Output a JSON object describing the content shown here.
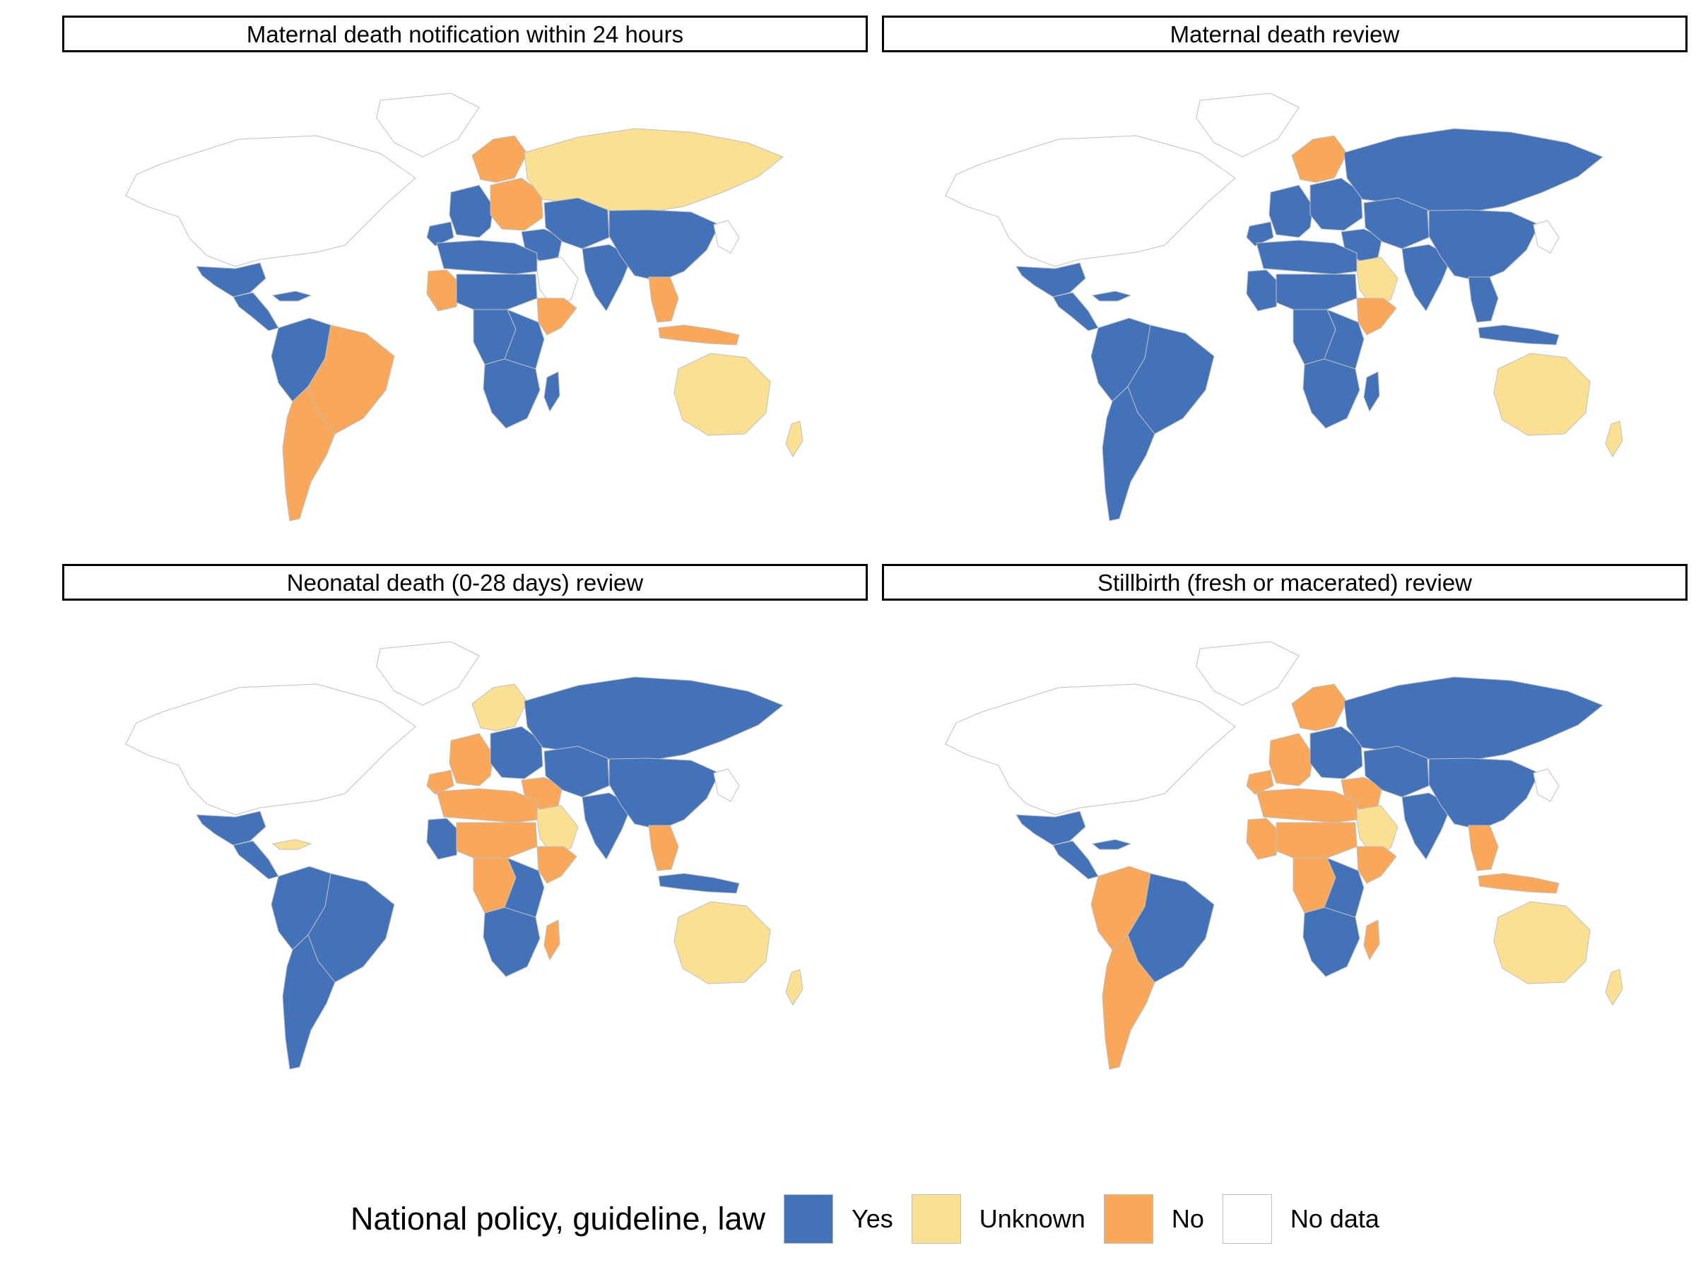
{
  "legend": {
    "title": "National policy, guideline, law",
    "items": [
      {
        "label": "Yes",
        "color": "#4372B8"
      },
      {
        "label": "Unknown",
        "color": "#FBDF92"
      },
      {
        "label": "No",
        "color": "#F9A75A"
      },
      {
        "label": "No data",
        "color": "#FFFFFF"
      }
    ]
  },
  "panels": [
    {
      "title": "Maternal death notification within 24 hours",
      "regions": {
        "north_america": "No data",
        "greenland": "No data",
        "mexico": "Yes",
        "central_america": "Yes",
        "caribbean": "Yes",
        "northwest_south_america": "Yes",
        "brazil": "No",
        "southern_cone": "No",
        "iberia": "Yes",
        "western_europe": "Yes",
        "scandinavia": "No",
        "eastern_europe": "No",
        "russia": "Unknown",
        "middle_east": "Yes",
        "arabia": "No data",
        "central_asia": "Yes",
        "south_asia": "Yes",
        "china": "Yes",
        "japan_korea": "No data",
        "southeast_asia": "No",
        "indonesia": "No",
        "australia": "Unknown",
        "new_zealand": "Unknown",
        "north_africa": "Yes",
        "west_africa_inland": "No",
        "sahel": "Yes",
        "horn_of_africa": "No",
        "central_africa": "Yes",
        "east_africa": "Yes",
        "southern_africa": "Yes",
        "madagascar": "Yes"
      }
    },
    {
      "title": "Maternal death review",
      "regions": {
        "north_america": "No data",
        "greenland": "No data",
        "mexico": "Yes",
        "central_america": "Yes",
        "caribbean": "Yes",
        "northwest_south_america": "Yes",
        "brazil": "Yes",
        "southern_cone": "Yes",
        "iberia": "Yes",
        "western_europe": "Yes",
        "scandinavia": "No",
        "eastern_europe": "Yes",
        "russia": "Yes",
        "middle_east": "Yes",
        "arabia": "Unknown",
        "central_asia": "Yes",
        "south_asia": "Yes",
        "china": "Yes",
        "japan_korea": "No data",
        "southeast_asia": "Yes",
        "indonesia": "Yes",
        "australia": "Unknown",
        "new_zealand": "Unknown",
        "north_africa": "Yes",
        "west_africa_inland": "Yes",
        "sahel": "Yes",
        "horn_of_africa": "No",
        "central_africa": "Yes",
        "east_africa": "Yes",
        "southern_africa": "Yes",
        "madagascar": "Yes"
      }
    },
    {
      "title": "Neonatal death (0-28 days) review",
      "regions": {
        "north_america": "No data",
        "greenland": "No data",
        "mexico": "Yes",
        "central_america": "Yes",
        "caribbean": "Unknown",
        "northwest_south_america": "Yes",
        "brazil": "Yes",
        "southern_cone": "Yes",
        "iberia": "No",
        "western_europe": "No",
        "scandinavia": "Unknown",
        "eastern_europe": "Yes",
        "russia": "Yes",
        "middle_east": "No",
        "arabia": "Unknown",
        "central_asia": "Yes",
        "south_asia": "Yes",
        "china": "Yes",
        "japan_korea": "No data",
        "southeast_asia": "No",
        "indonesia": "Yes",
        "australia": "Unknown",
        "new_zealand": "Unknown",
        "north_africa": "No",
        "west_africa_inland": "Yes",
        "sahel": "No",
        "horn_of_africa": "No",
        "central_africa": "No",
        "east_africa": "Yes",
        "southern_africa": "Yes",
        "madagascar": "No"
      }
    },
    {
      "title": "Stillbirth (fresh or macerated) review",
      "regions": {
        "north_america": "No data",
        "greenland": "No data",
        "mexico": "Yes",
        "central_america": "Yes",
        "caribbean": "Yes",
        "northwest_south_america": "No",
        "brazil": "Yes",
        "southern_cone": "No",
        "iberia": "No",
        "western_europe": "No",
        "scandinavia": "No",
        "eastern_europe": "Yes",
        "russia": "Yes",
        "middle_east": "No",
        "arabia": "Unknown",
        "central_asia": "Yes",
        "south_asia": "Yes",
        "china": "Yes",
        "japan_korea": "No data",
        "southeast_asia": "No",
        "indonesia": "No",
        "australia": "Unknown",
        "new_zealand": "Unknown",
        "north_africa": "No",
        "west_africa_inland": "No",
        "sahel": "No",
        "horn_of_africa": "No",
        "central_africa": "No",
        "east_africa": "Yes",
        "southern_africa": "Yes",
        "madagascar": "No"
      }
    }
  ]
}
